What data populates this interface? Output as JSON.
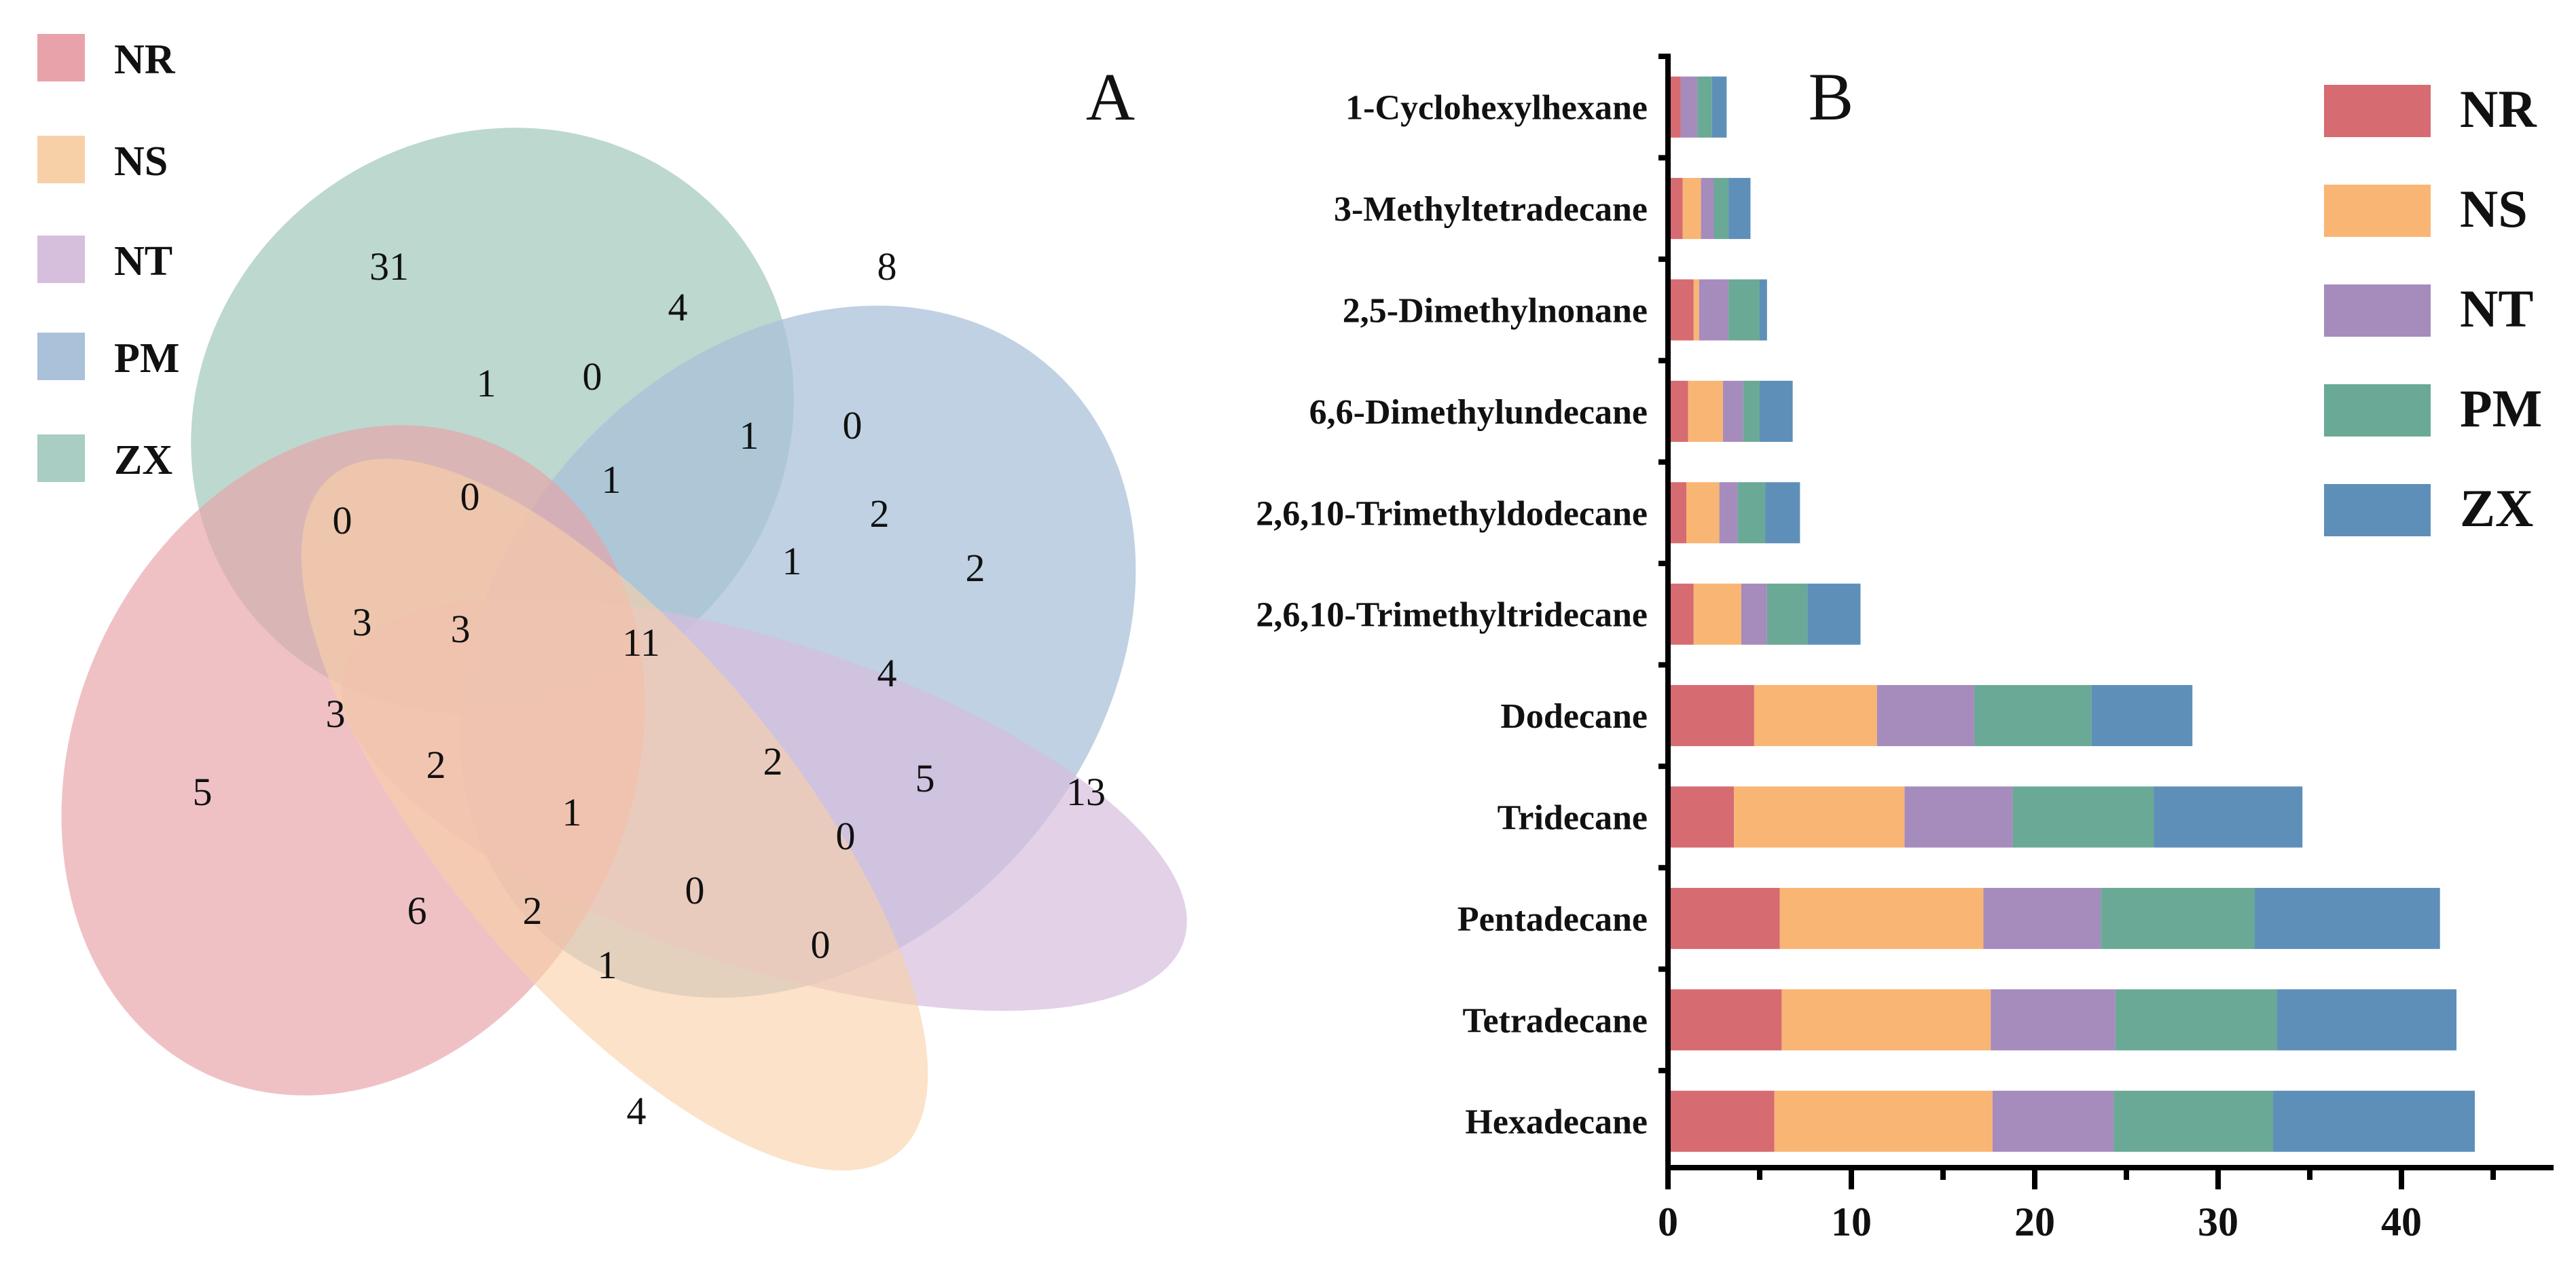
{
  "panel_a": {
    "letter": "A",
    "legend": [
      {
        "name": "NR",
        "color": "#e8a3aa"
      },
      {
        "name": "NS",
        "color": "#f8d0a8"
      },
      {
        "name": "NT",
        "color": "#d6bedd"
      },
      {
        "name": "PM",
        "color": "#a9c1d9"
      },
      {
        "name": "ZX",
        "color": "#a9cdc2"
      }
    ],
    "region_counts": [
      "31",
      "4",
      "8",
      "1",
      "0",
      "1",
      "0",
      "0",
      "0",
      "1",
      "2",
      "2",
      "1",
      "3",
      "3",
      "11",
      "4",
      "3",
      "2",
      "2",
      "5",
      "13",
      "5",
      "1",
      "0",
      "6",
      "2",
      "0",
      "0",
      "1",
      "4"
    ]
  },
  "chart_data": {
    "type": "bar",
    "orientation": "horizontal",
    "stacked": true,
    "panel_letter": "B",
    "categories": [
      "1-Cyclohexylhexane",
      "3-Methyltetradecane",
      "2,5-Dimethylnonane",
      "6,6-Dimethylundecane",
      "2,6,10-Trimethyldodecane",
      "2,6,10-Trimethyltridecane",
      "Dodecane",
      "Tridecane",
      "Pentadecane",
      "Tetradecane",
      "Hexadecane"
    ],
    "series": [
      {
        "name": "NR",
        "color": "#d66b72",
        "values": [
          0.7,
          0.8,
          1.4,
          1.1,
          1.0,
          1.4,
          4.7,
          3.6,
          6.1,
          6.2,
          5.8
        ]
      },
      {
        "name": "NS",
        "color": "#f9b574",
        "values": [
          0.0,
          1.0,
          0.3,
          1.9,
          1.8,
          2.6,
          6.7,
          9.3,
          11.1,
          11.4,
          11.9
        ]
      },
      {
        "name": "NT",
        "color": "#a68bbd",
        "values": [
          0.9,
          0.7,
          1.6,
          1.1,
          1.0,
          1.4,
          5.3,
          5.9,
          6.4,
          6.8,
          6.6
        ]
      },
      {
        "name": "PM",
        "color": "#6aa996",
        "values": [
          0.8,
          0.8,
          1.7,
          0.9,
          1.5,
          2.2,
          6.4,
          7.7,
          8.4,
          8.8,
          8.7
        ]
      },
      {
        "name": "ZX",
        "color": "#5e8fb9",
        "values": [
          0.8,
          1.2,
          0.4,
          1.8,
          1.9,
          2.9,
          5.5,
          8.1,
          10.1,
          9.8,
          11.0
        ]
      }
    ],
    "xlim": [
      0,
      48
    ],
    "xticks": [
      "0",
      "10",
      "20",
      "30",
      "40"
    ],
    "title": "",
    "xlabel": "",
    "ylabel": ""
  }
}
